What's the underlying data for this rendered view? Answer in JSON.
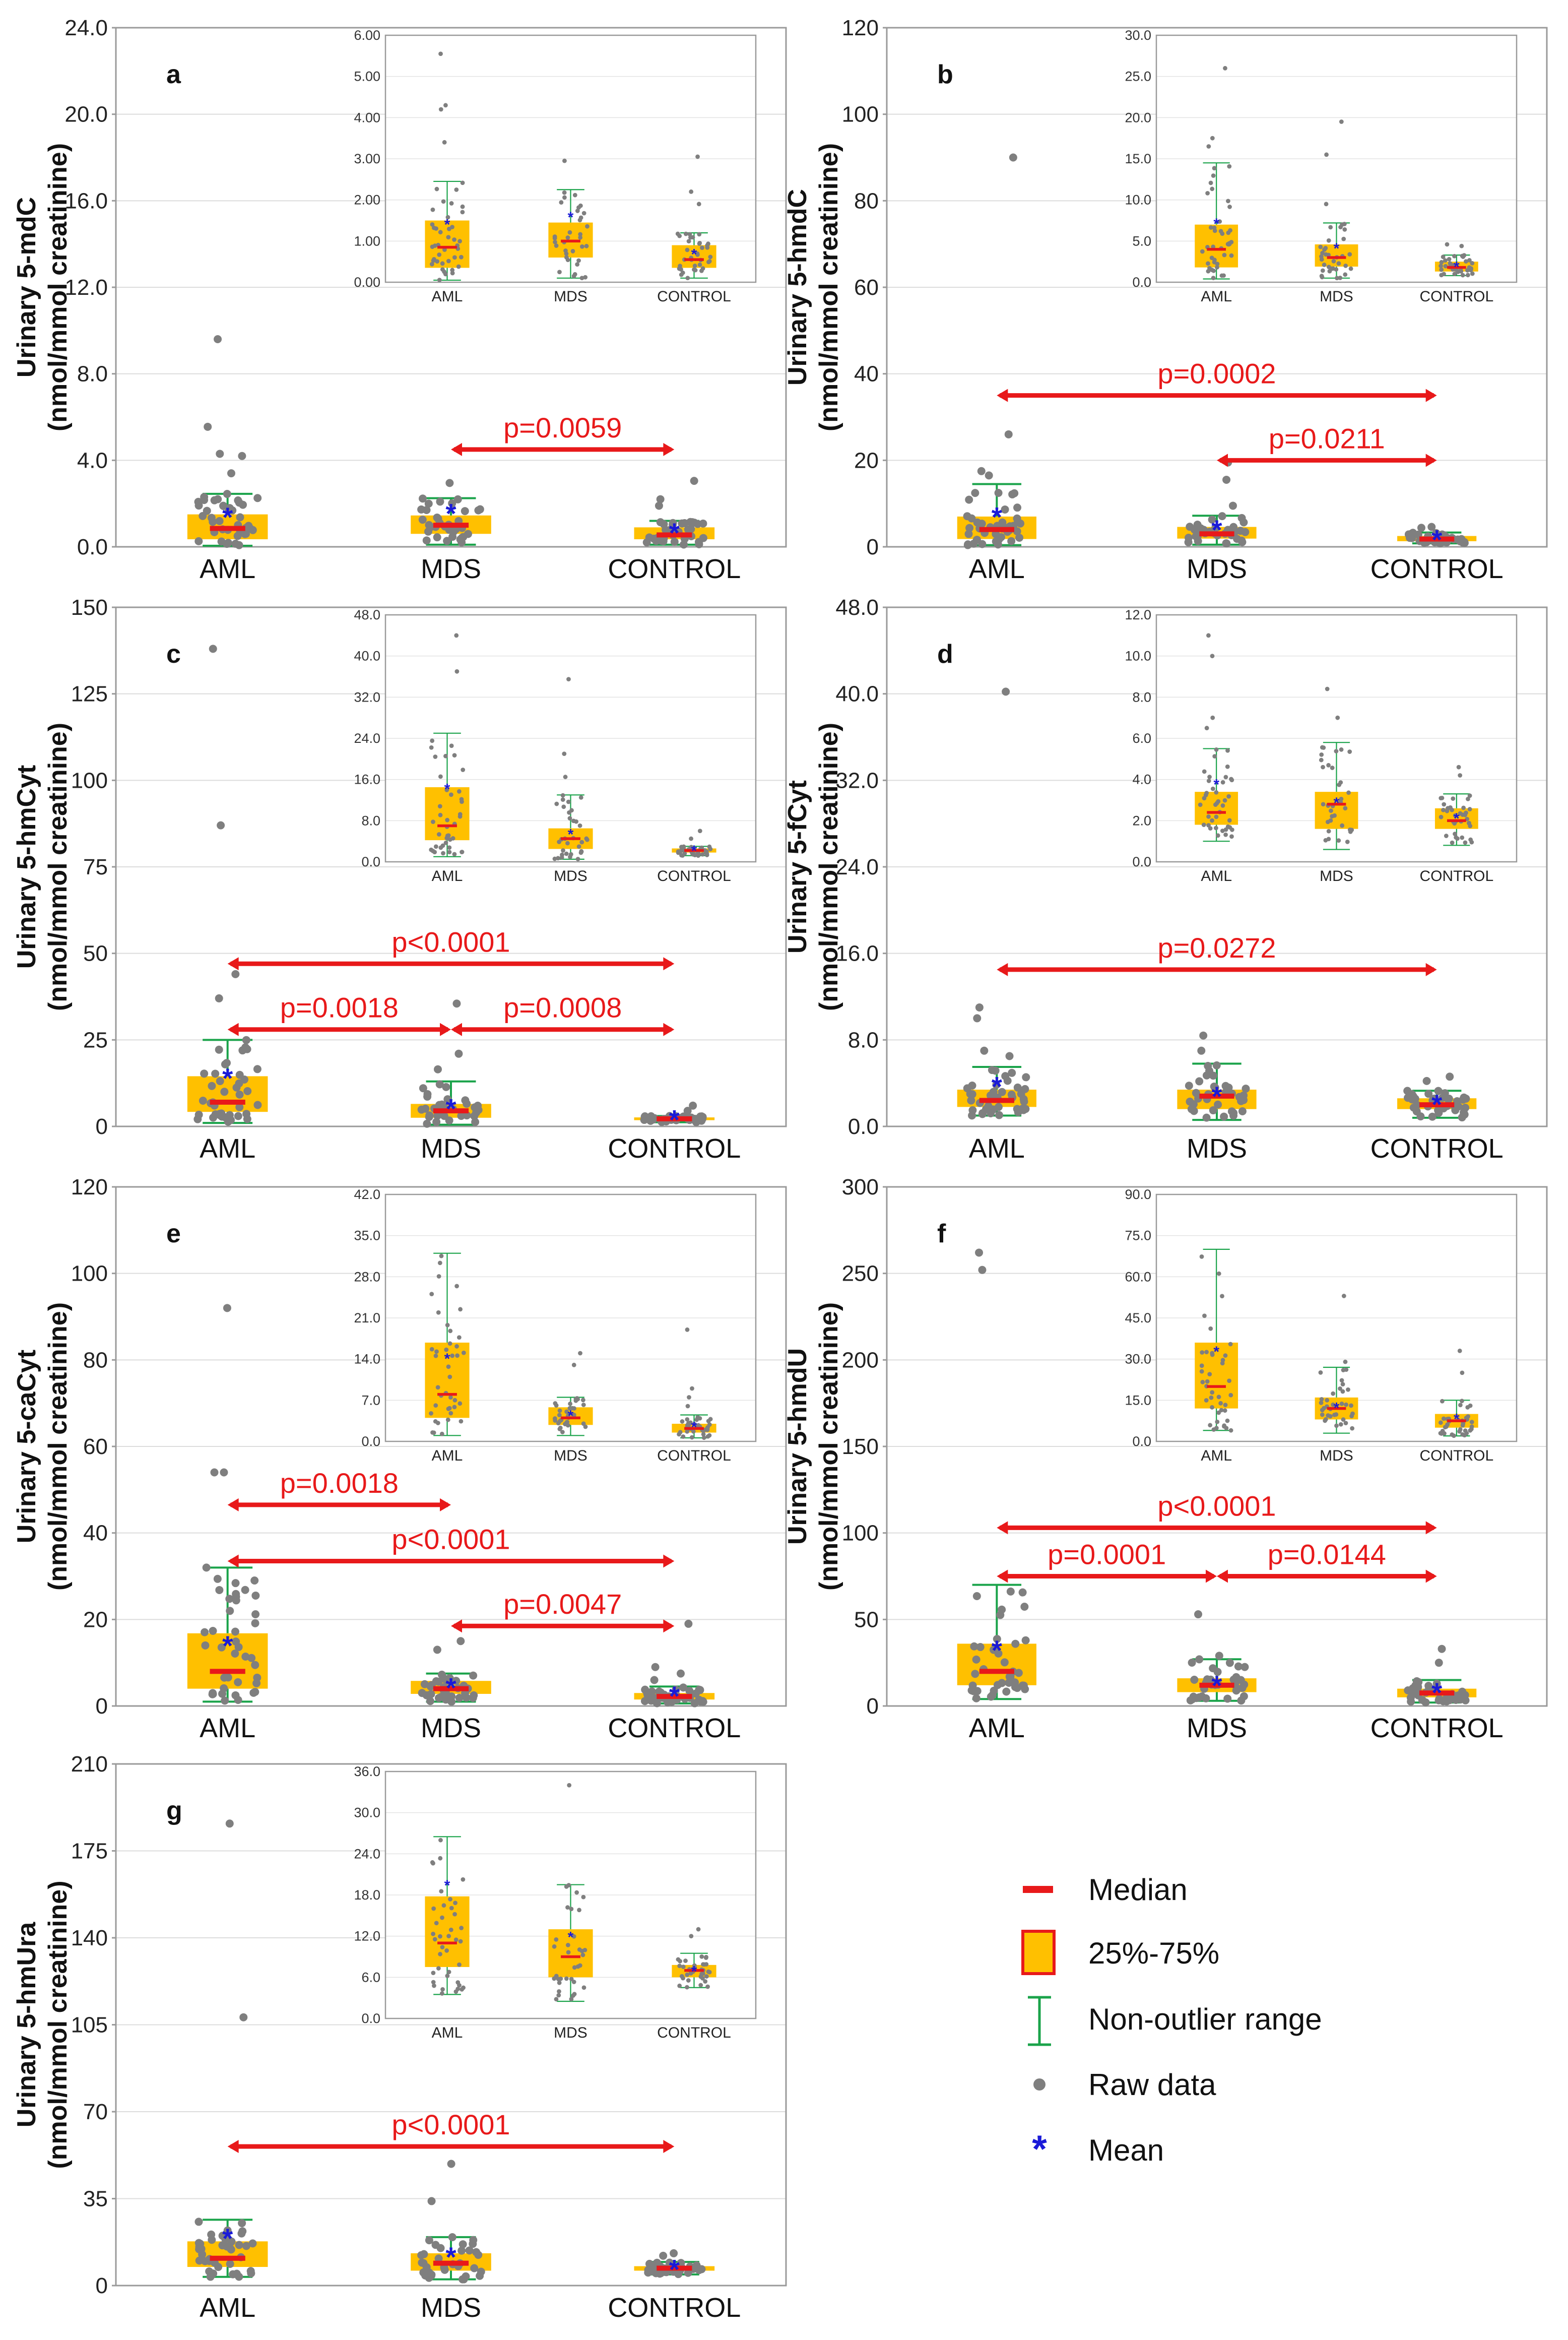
{
  "colors": {
    "box": "#ffc000",
    "median": "#e8191a",
    "whisker": "#1aa34a",
    "raw": "#7f7f7f",
    "mean": "#1a1ad8",
    "pvalue": "#e8191a",
    "boxBorder": "#e8191a"
  },
  "legend": {
    "median": "Median",
    "iqr": "25%-75%",
    "range": "Non-outlier range",
    "raw": "Raw data",
    "mean": "Mean"
  },
  "chart_data": [
    {
      "type": "box",
      "panel": "a",
      "ylabel1": "Urinary 5-mdC",
      "ylabel2": "(nmol/mmol creatinine)",
      "categories": [
        "AML",
        "MDS",
        "CONTROL"
      ],
      "ylim": [
        0,
        24
      ],
      "yticks": [
        "0.0",
        "4.0",
        "8.0",
        "12.0",
        "16.0",
        "20.0",
        "24.0"
      ],
      "groups": [
        {
          "q1": 0.35,
          "median": 0.85,
          "q3": 1.5,
          "wlo": 0.05,
          "whi": 2.45,
          "mean": 1.42,
          "outliers": [
            3.4,
            4.2,
            4.3,
            5.55,
            9.6
          ],
          "n": 40
        },
        {
          "q1": 0.6,
          "median": 1.0,
          "q3": 1.45,
          "wlo": 0.1,
          "whi": 2.25,
          "mean": 1.6,
          "outliers": [
            2.95
          ],
          "n": 34
        },
        {
          "q1": 0.35,
          "median": 0.55,
          "q3": 0.9,
          "wlo": 0.1,
          "whi": 1.2,
          "mean": 0.7,
          "outliers": [
            1.9,
            2.2,
            3.05
          ],
          "n": 36
        }
      ],
      "comparisons": [
        {
          "from": 1,
          "to": 2,
          "y": 4.5,
          "label": "p=0.0059"
        }
      ],
      "inset": {
        "ylim": [
          0,
          6
        ],
        "yticks": [
          "0.00",
          "1.00",
          "2.00",
          "3.00",
          "4.00",
          "5.00",
          "6.00"
        ],
        "outliersMax": 6
      }
    },
    {
      "type": "box",
      "panel": "b",
      "ylabel1": "Urinary 5-hmdC",
      "ylabel2": "(nmol/mmol creatinine)",
      "categories": [
        "AML",
        "MDS",
        "CONTROL"
      ],
      "ylim": [
        0,
        120
      ],
      "yticks": [
        "0",
        "20",
        "40",
        "60",
        "80",
        "100",
        "120"
      ],
      "groups": [
        {
          "q1": 1.8,
          "median": 4.0,
          "q3": 7.0,
          "wlo": 0.4,
          "whi": 14.5,
          "mean": 7.2,
          "outliers": [
            16.5,
            17.5,
            26,
            90
          ],
          "n": 40
        },
        {
          "q1": 1.9,
          "median": 3.0,
          "q3": 4.6,
          "wlo": 0.5,
          "whi": 7.2,
          "mean": 4.2,
          "outliers": [
            9.5,
            15.5,
            19.5
          ],
          "n": 34
        },
        {
          "q1": 1.3,
          "median": 1.8,
          "q3": 2.5,
          "wlo": 0.8,
          "whi": 3.3,
          "mean": 1.95,
          "outliers": [
            4.4,
            4.6
          ],
          "n": 36
        }
      ],
      "comparisons": [
        {
          "from": 0,
          "to": 2,
          "y": 35,
          "label": "p=0.0002"
        },
        {
          "from": 1,
          "to": 2,
          "y": 20,
          "label": "p=0.0211"
        }
      ],
      "inset": {
        "ylim": [
          0,
          30
        ],
        "yticks": [
          "0.0",
          "5.0",
          "10.0",
          "15.0",
          "20.0",
          "25.0",
          "30.0"
        ],
        "outliersMax": 30
      }
    },
    {
      "type": "box",
      "panel": "c",
      "ylabel1": "Urinary 5-hmCyt",
      "ylabel2": "(nmol/mmol creatinine)",
      "categories": [
        "AML",
        "MDS",
        "CONTROL"
      ],
      "ylim": [
        0,
        150
      ],
      "yticks": [
        "0",
        "25",
        "50",
        "75",
        "100",
        "125",
        "150"
      ],
      "groups": [
        {
          "q1": 4.2,
          "median": 7.0,
          "q3": 14.5,
          "wlo": 1.0,
          "whi": 25,
          "mean": 14.3,
          "outliers": [
            37,
            44,
            87,
            138
          ],
          "n": 40
        },
        {
          "q1": 2.5,
          "median": 4.5,
          "q3": 6.5,
          "wlo": 0.5,
          "whi": 13,
          "mean": 5.5,
          "outliers": [
            16.5,
            21,
            35.5
          ],
          "n": 34
        },
        {
          "q1": 1.8,
          "median": 2.2,
          "q3": 2.6,
          "wlo": 1.2,
          "whi": 3.0,
          "mean": 2.3,
          "outliers": [
            4.5,
            6
          ],
          "n": 36
        }
      ],
      "comparisons": [
        {
          "from": 0,
          "to": 2,
          "y": 47,
          "label": "p<0.0001"
        },
        {
          "from": 0,
          "to": 1,
          "y": 28,
          "label": "p=0.0018"
        },
        {
          "from": 1,
          "to": 2,
          "y": 28,
          "label": "p=0.0008"
        }
      ],
      "inset": {
        "ylim": [
          0,
          48
        ],
        "yticks": [
          "0.0",
          "8.0",
          "16.0",
          "24.0",
          "32.0",
          "40.0",
          "48.0"
        ],
        "outliersMax": 48
      }
    },
    {
      "type": "box",
      "panel": "d",
      "ylabel1": "Urinary 5-fCyt",
      "ylabel2": "(nmol/mmol creatinine)",
      "categories": [
        "AML",
        "MDS",
        "CONTROL"
      ],
      "ylim": [
        0,
        48
      ],
      "yticks": [
        "0.0",
        "8.0",
        "16.0",
        "24.0",
        "32.0",
        "40.0",
        "48.0"
      ],
      "groups": [
        {
          "q1": 1.8,
          "median": 2.4,
          "q3": 3.4,
          "wlo": 1.0,
          "whi": 5.5,
          "mean": 3.8,
          "outliers": [
            6.5,
            7,
            10,
            11,
            40.2
          ],
          "n": 40
        },
        {
          "q1": 1.6,
          "median": 2.8,
          "q3": 3.4,
          "wlo": 0.6,
          "whi": 5.8,
          "mean": 2.9,
          "outliers": [
            7,
            8.4
          ],
          "n": 34
        },
        {
          "q1": 1.6,
          "median": 2.0,
          "q3": 2.6,
          "wlo": 0.8,
          "whi": 3.3,
          "mean": 2.15,
          "outliers": [
            4.2,
            4.6
          ],
          "n": 36
        }
      ],
      "comparisons": [
        {
          "from": 0,
          "to": 2,
          "y": 14.5,
          "label": "p=0.0272"
        }
      ],
      "inset": {
        "ylim": [
          0,
          12
        ],
        "yticks": [
          "0.0",
          "2.0",
          "4.0",
          "6.0",
          "8.0",
          "10.0",
          "12.0"
        ],
        "outliersMax": 12
      }
    },
    {
      "type": "box",
      "panel": "e",
      "ylabel1": "Urinary 5-caCyt",
      "ylabel2": "(nmol/mmol creatinine)",
      "categories": [
        "AML",
        "MDS",
        "CONTROL"
      ],
      "ylim": [
        0,
        120
      ],
      "yticks": [
        "0",
        "20",
        "40",
        "60",
        "80",
        "100",
        "120"
      ],
      "groups": [
        {
          "q1": 4.0,
          "median": 8.0,
          "q3": 16.8,
          "wlo": 1.0,
          "whi": 32,
          "mean": 14.2,
          "outliers": [
            54,
            54,
            92
          ],
          "n": 40
        },
        {
          "q1": 2.8,
          "median": 4.0,
          "q3": 5.8,
          "wlo": 1.0,
          "whi": 7.5,
          "mean": 4.5,
          "outliers": [
            13,
            15
          ],
          "n": 34
        },
        {
          "q1": 1.5,
          "median": 2.2,
          "q3": 3.0,
          "wlo": 0.6,
          "whi": 4.5,
          "mean": 2.6,
          "outliers": [
            6,
            7.5,
            9,
            19
          ],
          "n": 36
        }
      ],
      "comparisons": [
        {
          "from": 0,
          "to": 1,
          "y": 46.5,
          "label": "p=0.0018"
        },
        {
          "from": 0,
          "to": 2,
          "y": 33.5,
          "label": "p<0.0001"
        },
        {
          "from": 1,
          "to": 2,
          "y": 18.5,
          "label": "p=0.0047"
        }
      ],
      "inset": {
        "ylim": [
          0,
          42
        ],
        "yticks": [
          "0.0",
          "7.0",
          "14.0",
          "21.0",
          "28.0",
          "35.0",
          "42.0"
        ],
        "outliersMax": 42
      }
    },
    {
      "type": "box",
      "panel": "f",
      "ylabel1": "Urinary 5-hmdU",
      "ylabel2": "(nmol/mmol creatinine)",
      "categories": [
        "AML",
        "MDS",
        "CONTROL"
      ],
      "ylim": [
        0,
        300
      ],
      "yticks": [
        "0",
        "50",
        "100",
        "150",
        "200",
        "250",
        "300"
      ],
      "groups": [
        {
          "q1": 12,
          "median": 20,
          "q3": 36,
          "wlo": 4,
          "whi": 70,
          "mean": 33,
          "outliers": [
            252,
            262
          ],
          "n": 40
        },
        {
          "q1": 8,
          "median": 12,
          "q3": 16,
          "wlo": 3,
          "whi": 27,
          "mean": 12.5,
          "outliers": [
            29,
            53
          ],
          "n": 34
        },
        {
          "q1": 5,
          "median": 7.5,
          "q3": 10,
          "wlo": 2,
          "whi": 15,
          "mean": 8.5,
          "outliers": [
            25,
            33
          ],
          "n": 36
        }
      ],
      "comparisons": [
        {
          "from": 0,
          "to": 2,
          "y": 103,
          "label": "p<0.0001"
        },
        {
          "from": 0,
          "to": 1,
          "y": 75,
          "label": "p=0.0001"
        },
        {
          "from": 1,
          "to": 2,
          "y": 75,
          "label": "p=0.0144"
        }
      ],
      "inset": {
        "ylim": [
          0,
          90
        ],
        "yticks": [
          "0.0",
          "15.0",
          "30.0",
          "45.0",
          "60.0",
          "75.0",
          "90.0"
        ],
        "outliersMax": 90
      }
    },
    {
      "type": "box",
      "panel": "g",
      "ylabel1": "Urinary 5-hmUra",
      "ylabel2": "(nmol/mmol creatinine)",
      "categories": [
        "AML",
        "MDS",
        "CONTROL"
      ],
      "ylim": [
        0,
        210
      ],
      "yticks": [
        "0",
        "35",
        "70",
        "105",
        "140",
        "175",
        "210"
      ],
      "groups": [
        {
          "q1": 7.5,
          "median": 11,
          "q3": 17.8,
          "wlo": 3.5,
          "whi": 26.5,
          "mean": 19.5,
          "outliers": [
            108,
            186
          ],
          "n": 40
        },
        {
          "q1": 6,
          "median": 9,
          "q3": 13,
          "wlo": 2.5,
          "whi": 19.5,
          "mean": 12,
          "outliers": [
            34,
            49
          ],
          "n": 34
        },
        {
          "q1": 6,
          "median": 7,
          "q3": 7.8,
          "wlo": 4.5,
          "whi": 9.5,
          "mean": 7,
          "outliers": [
            12,
            13
          ],
          "n": 36
        }
      ],
      "comparisons": [
        {
          "from": 0,
          "to": 2,
          "y": 56,
          "label": "p<0.0001"
        }
      ],
      "inset": {
        "ylim": [
          0,
          36
        ],
        "yticks": [
          "0.0",
          "6.0",
          "12.0",
          "18.0",
          "24.0",
          "30.0",
          "36.0"
        ],
        "outliersMax": 36
      }
    }
  ]
}
